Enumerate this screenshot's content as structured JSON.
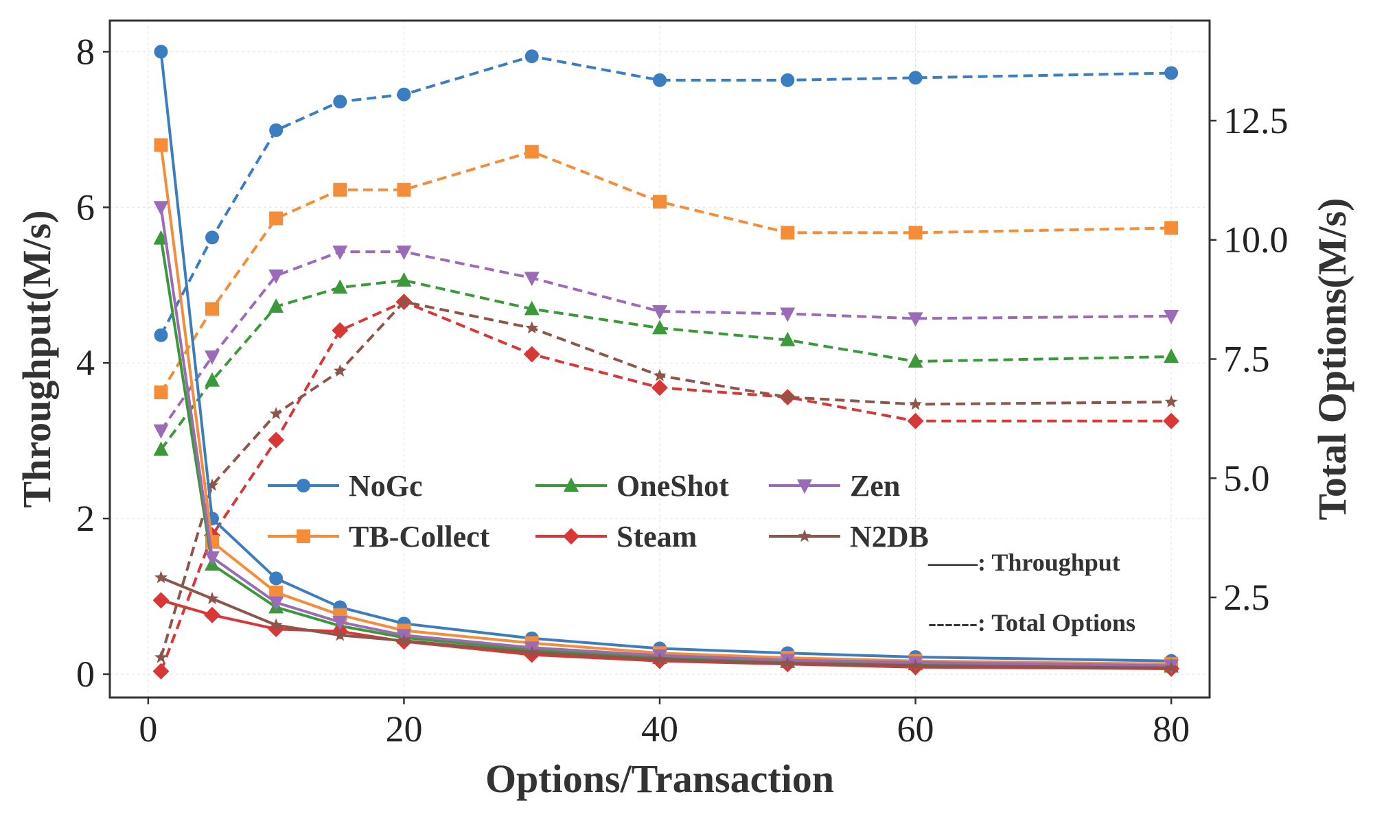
{
  "chart_data": {
    "type": "line",
    "title": "",
    "xlabel": "Options/Transaction",
    "ylabel_left": "Throughput(M/s)",
    "ylabel_right": "Total Options(M/s)",
    "x": [
      1,
      5,
      10,
      15,
      20,
      30,
      40,
      50,
      60,
      80
    ],
    "xlim": [
      -3,
      83
    ],
    "ylim_left": [
      -0.3,
      8.4
    ],
    "ylim_right": [
      0.4,
      14.6
    ],
    "x_ticks": [
      0,
      20,
      40,
      60,
      80
    ],
    "y_ticks_left": [
      0,
      2,
      4,
      6,
      8
    ],
    "y_ticks_right": [
      "2.5",
      "5.0",
      "7.5",
      "10.0",
      "12.5"
    ],
    "grid": true,
    "legend_position": "center",
    "style_notes": {
      "solid": "——: Throughput",
      "dashed": "------: Total Options"
    },
    "series": [
      {
        "name": "NoGc",
        "color": "#3a7ec1",
        "marker": "circle",
        "throughput": [
          8.0,
          2.0,
          1.23,
          0.86,
          0.65,
          0.46,
          0.33,
          0.27,
          0.22,
          0.17
        ],
        "total_options": [
          8.0,
          10.05,
          12.3,
          12.9,
          13.05,
          13.85,
          13.35,
          13.35,
          13.4,
          13.5
        ]
      },
      {
        "name": "TB-Collect",
        "color": "#f58d38",
        "marker": "square",
        "throughput": [
          6.8,
          1.7,
          1.05,
          0.76,
          0.56,
          0.4,
          0.27,
          0.21,
          0.17,
          0.13
        ],
        "total_options": [
          6.8,
          8.55,
          10.45,
          11.05,
          11.05,
          11.85,
          10.8,
          10.15,
          10.15,
          10.25
        ]
      },
      {
        "name": "OneShot",
        "color": "#3a9a3a",
        "marker": "triangle-up",
        "throughput": [
          5.6,
          1.41,
          0.86,
          0.62,
          0.47,
          0.31,
          0.21,
          0.16,
          0.13,
          0.1
        ],
        "total_options": [
          5.6,
          7.05,
          8.6,
          9.0,
          9.15,
          8.55,
          8.15,
          7.9,
          7.45,
          7.55
        ]
      },
      {
        "name": "Steam",
        "color": "#d93636",
        "marker": "diamond",
        "throughput": [
          0.95,
          0.76,
          0.58,
          0.55,
          0.42,
          0.25,
          0.17,
          0.13,
          0.09,
          0.07
        ],
        "total_options": [
          0.95,
          3.8,
          5.8,
          8.1,
          8.7,
          7.6,
          6.9,
          6.7,
          6.2,
          6.2
        ]
      },
      {
        "name": "Zen",
        "color": "#9a6bb8",
        "marker": "triangle-down",
        "throughput": [
          6.0,
          1.5,
          0.92,
          0.67,
          0.5,
          0.34,
          0.24,
          0.18,
          0.15,
          0.11
        ],
        "total_options": [
          6.0,
          7.55,
          9.25,
          9.75,
          9.75,
          9.2,
          8.5,
          8.45,
          8.35,
          8.4
        ]
      },
      {
        "name": "N2DB",
        "color": "#8c564b",
        "marker": "star",
        "throughput": [
          1.24,
          0.97,
          0.63,
          0.5,
          0.43,
          0.28,
          0.19,
          0.14,
          0.11,
          0.08
        ],
        "total_options": [
          1.24,
          4.85,
          6.35,
          7.25,
          8.7,
          8.15,
          7.15,
          6.7,
          6.55,
          6.6
        ]
      }
    ]
  }
}
